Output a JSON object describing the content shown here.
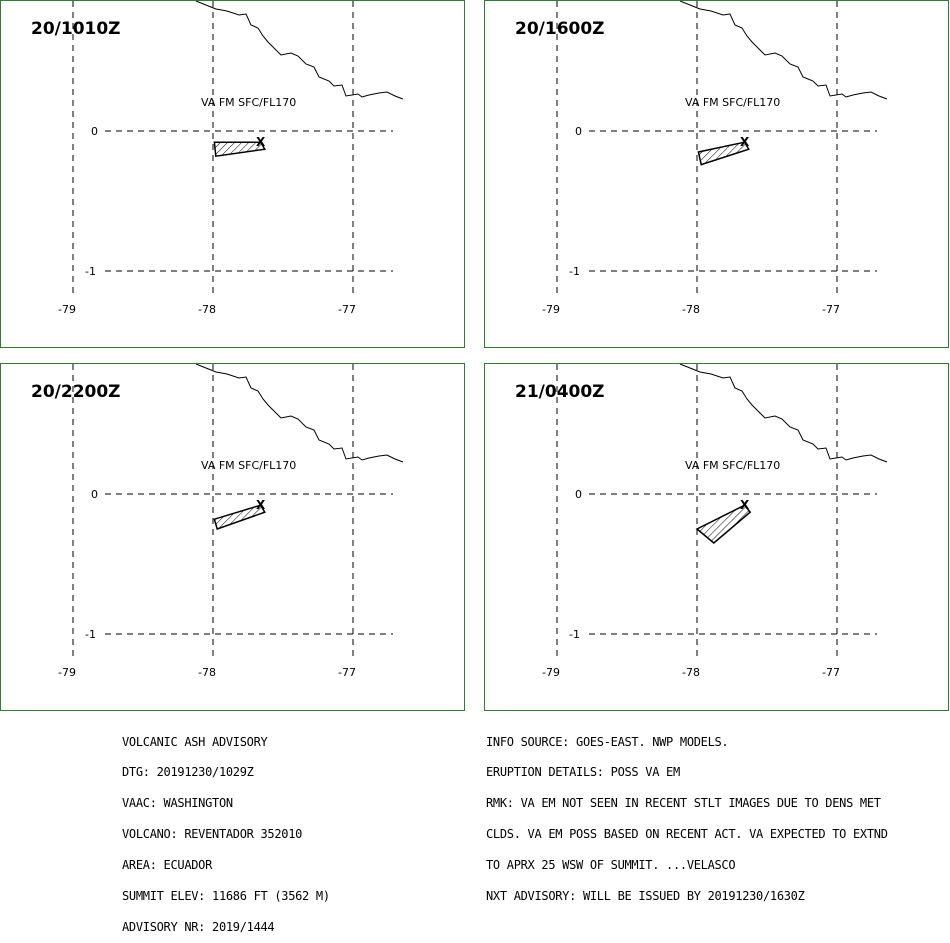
{
  "panels": [
    {
      "time": "20/1010Z",
      "label": "VA FM SFC/FL170",
      "ash_polygon": [
        [
          -77.66,
          -0.08
        ],
        [
          -77.63,
          -0.13
        ],
        [
          -77.98,
          -0.18
        ],
        [
          -77.99,
          -0.08
        ]
      ]
    },
    {
      "time": "20/1600Z",
      "label": "VA FM SFC/FL170",
      "ash_polygon": [
        [
          -77.66,
          -0.08
        ],
        [
          -77.63,
          -0.13
        ],
        [
          -77.97,
          -0.24
        ],
        [
          -77.99,
          -0.15
        ]
      ]
    },
    {
      "time": "20/2200Z",
      "label": "VA FM SFC/FL170",
      "ash_polygon": [
        [
          -77.66,
          -0.08
        ],
        [
          -77.63,
          -0.13
        ],
        [
          -77.97,
          -0.25
        ],
        [
          -77.99,
          -0.18
        ]
      ]
    },
    {
      "time": "21/0400Z",
      "label": "VA FM SFC/FL170",
      "ash_polygon": [
        [
          -77.66,
          -0.08
        ],
        [
          -77.62,
          -0.13
        ],
        [
          -77.88,
          -0.35
        ],
        [
          -78.0,
          -0.25
        ]
      ]
    }
  ],
  "map": {
    "lon_ticks": [
      "-79",
      "-78",
      "-77"
    ],
    "lat_ticks": [
      "0",
      "-1"
    ],
    "volcano_marker": "X",
    "border_color": "#2e7d32"
  },
  "advisory_left": [
    "VOLCANIC ASH ADVISORY",
    "DTG: 20191230/1029Z",
    "VAAC: WASHINGTON",
    "VOLCANO: REVENTADOR 352010",
    "AREA: ECUADOR",
    "SUMMIT ELEV: 11686 FT (3562 M)",
    "ADVISORY NR: 2019/1444"
  ],
  "advisory_right": [
    "INFO SOURCE: GOES-EAST. NWP MODELS.",
    "ERUPTION DETAILS: POSS VA EM",
    "RMK: VA EM NOT SEEN IN RECENT STLT IMAGES DUE TO DENS MET",
    "CLDS. VA EM POSS BASED ON RECENT ACT. VA EXPECTED TO EXTND",
    "TO APRX 25 WSW OF SUMMIT. ...VELASCO",
    "NXT ADVISORY: WILL BE ISSUED BY 20191230/1630Z"
  ]
}
